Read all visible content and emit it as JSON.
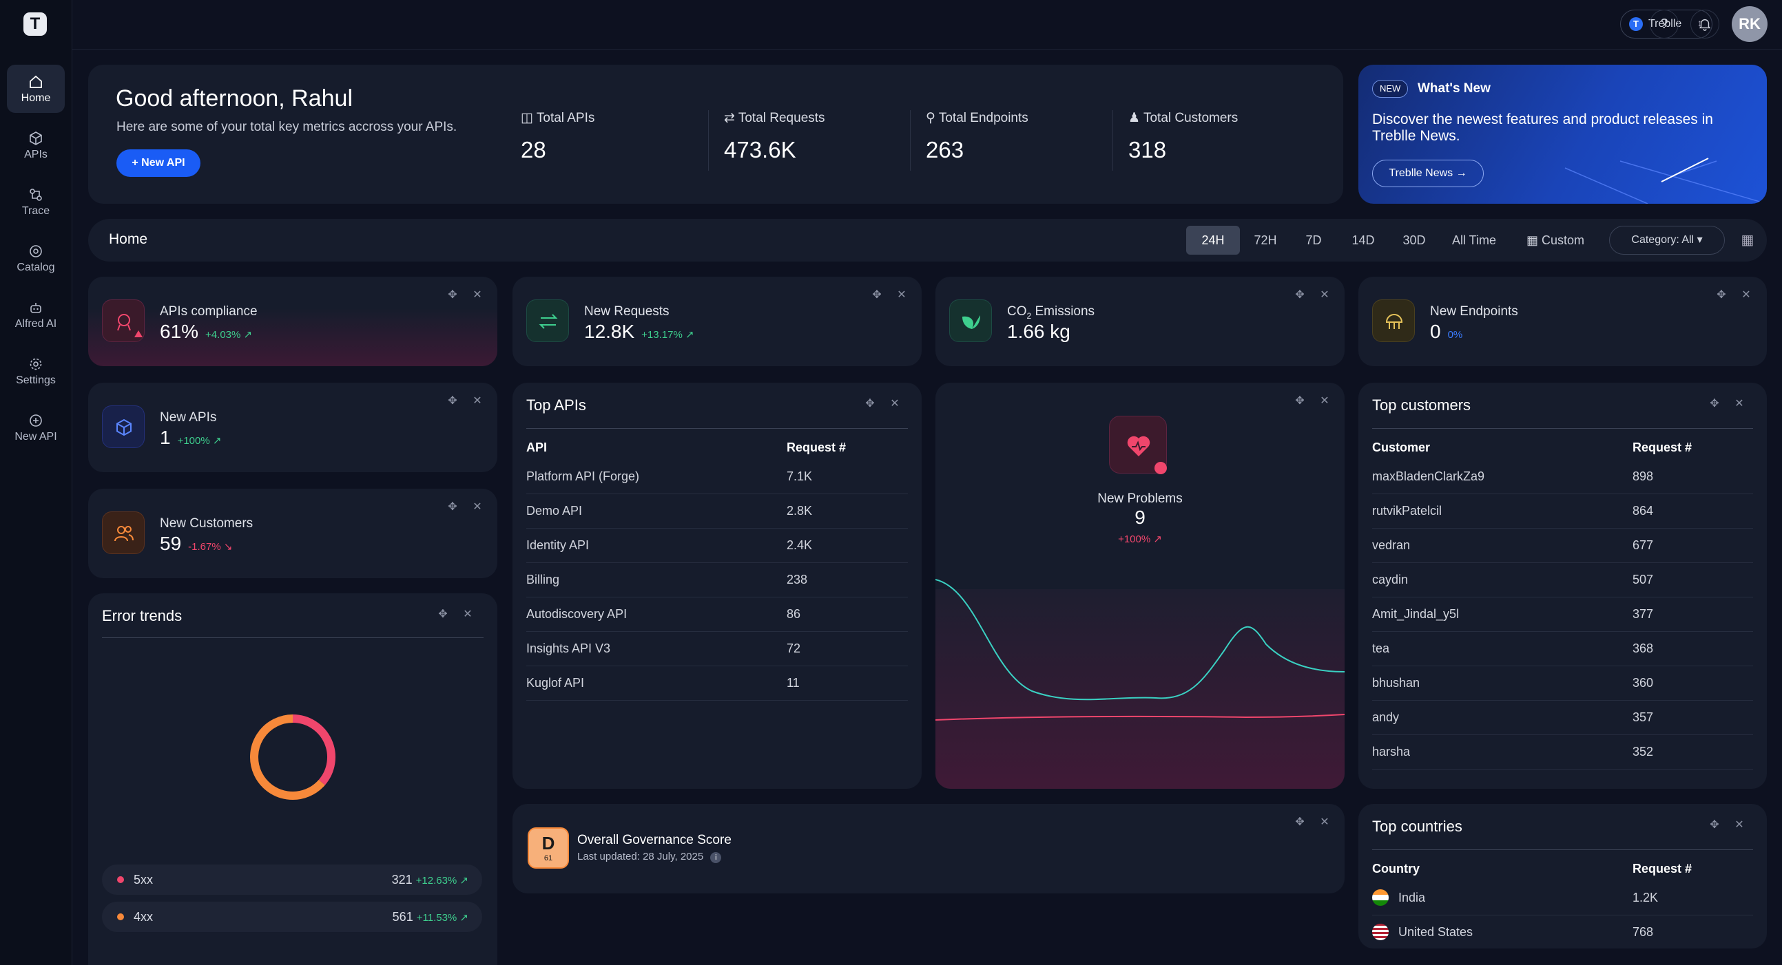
{
  "colors": {
    "accent": "#1a5cf5",
    "positive": "#3ecf8e",
    "negative": "#f0466c",
    "card": "#161c2c",
    "background": "#0d1120"
  },
  "sidebar": {
    "logo_icon": "treblle-logo",
    "items": [
      {
        "label": "Home",
        "icon": "home-icon",
        "active": true
      },
      {
        "label": "APIs",
        "icon": "cube-icon"
      },
      {
        "label": "Trace",
        "icon": "trace-icon"
      },
      {
        "label": "Catalog",
        "icon": "catalog-icon"
      },
      {
        "label": "Alfred AI",
        "icon": "robot-icon"
      },
      {
        "label": "Settings",
        "icon": "gear-icon"
      },
      {
        "label": "New API",
        "icon": "plus-circle-icon"
      }
    ]
  },
  "topbar": {
    "org_name": "Treblle",
    "org_initial": "T",
    "help": "?",
    "bell": "🔔",
    "avatar": "RK"
  },
  "welcome": {
    "greeting": "Good afternoon, Rahul",
    "subtitle": "Here are some of your total key metrics accross your APIs.",
    "new_api_button": "+ New API",
    "metrics": [
      {
        "label": "Total APIs",
        "value": "28",
        "icon": "cube-icon"
      },
      {
        "label": "Total Requests",
        "value": "473.6K",
        "icon": "arrows-icon"
      },
      {
        "label": "Total Endpoints",
        "value": "263",
        "icon": "endpoint-icon"
      },
      {
        "label": "Total Customers",
        "value": "318",
        "icon": "users-icon"
      }
    ]
  },
  "whats_new": {
    "badge": "NEW",
    "title": "What's New",
    "text": "Discover the newest features and product releases in Treblle News.",
    "button": "Treblle News →"
  },
  "home_bar": {
    "title": "Home",
    "ranges": [
      "24H",
      "72H",
      "7D",
      "14D",
      "30D",
      "All Time",
      "Custom"
    ],
    "active_range": "24H",
    "category": "Category: All"
  },
  "cards": {
    "compliance": {
      "title": "APIs compliance",
      "value": "61%",
      "delta": "+4.03% ↗"
    },
    "new_requests": {
      "title": "New Requests",
      "value": "12.8K",
      "delta": "+13.17% ↗"
    },
    "co2": {
      "title_pre": "CO",
      "title_sub": "2",
      "title_post": " Emissions",
      "value": "1.66 kg"
    },
    "new_endpoints": {
      "title": "New Endpoints",
      "value": "0",
      "delta": "0%"
    },
    "new_apis": {
      "title": "New APIs",
      "value": "1",
      "delta": "+100% ↗"
    },
    "new_customers": {
      "title": "New Customers",
      "value": "59",
      "delta": "-1.67% ↘"
    },
    "new_problems": {
      "title": "New Problems",
      "value": "9",
      "delta": "+100% ↗"
    },
    "governance": {
      "grade": "D",
      "score": "61",
      "title": "Overall Governance Score",
      "updated": "Last updated: 28 July, 2025"
    }
  },
  "top_apis": {
    "title": "Top APIs",
    "headers": [
      "API",
      "Request #"
    ],
    "rows": [
      [
        "Platform API (Forge)",
        "7.1K"
      ],
      [
        "Demo API",
        "2.8K"
      ],
      [
        "Identity API",
        "2.4K"
      ],
      [
        "Billing",
        "238"
      ],
      [
        "Autodiscovery API",
        "86"
      ],
      [
        "Insights API V3",
        "72"
      ],
      [
        "Kuglof API",
        "11"
      ]
    ]
  },
  "top_customers": {
    "title": "Top customers",
    "headers": [
      "Customer",
      "Request #"
    ],
    "rows": [
      [
        "maxBladenClarkZa9",
        "898"
      ],
      [
        "rutvikPatelcil",
        "864"
      ],
      [
        "vedran",
        "677"
      ],
      [
        "caydin",
        "507"
      ],
      [
        "Amit_Jindal_y5l",
        "377"
      ],
      [
        "tea",
        "368"
      ],
      [
        "bhushan",
        "360"
      ],
      [
        "andy",
        "357"
      ],
      [
        "harsha",
        "352"
      ]
    ]
  },
  "top_countries": {
    "title": "Top countries",
    "headers": [
      "Country",
      "Request #"
    ],
    "rows": [
      [
        "India",
        "1.2K"
      ],
      [
        "United States",
        "768"
      ]
    ]
  },
  "error_trends": {
    "title": "Error trends",
    "legend": [
      {
        "label": "5xx",
        "value": "321",
        "delta": "+12.63% ↗",
        "color": "#f0466c"
      },
      {
        "label": "4xx",
        "value": "561",
        "delta": "+11.53% ↗",
        "color": "#f7893a"
      }
    ]
  },
  "chart_data": {
    "type": "pie",
    "categories": [
      "5xx",
      "4xx"
    ],
    "values": [
      321,
      561
    ]
  }
}
